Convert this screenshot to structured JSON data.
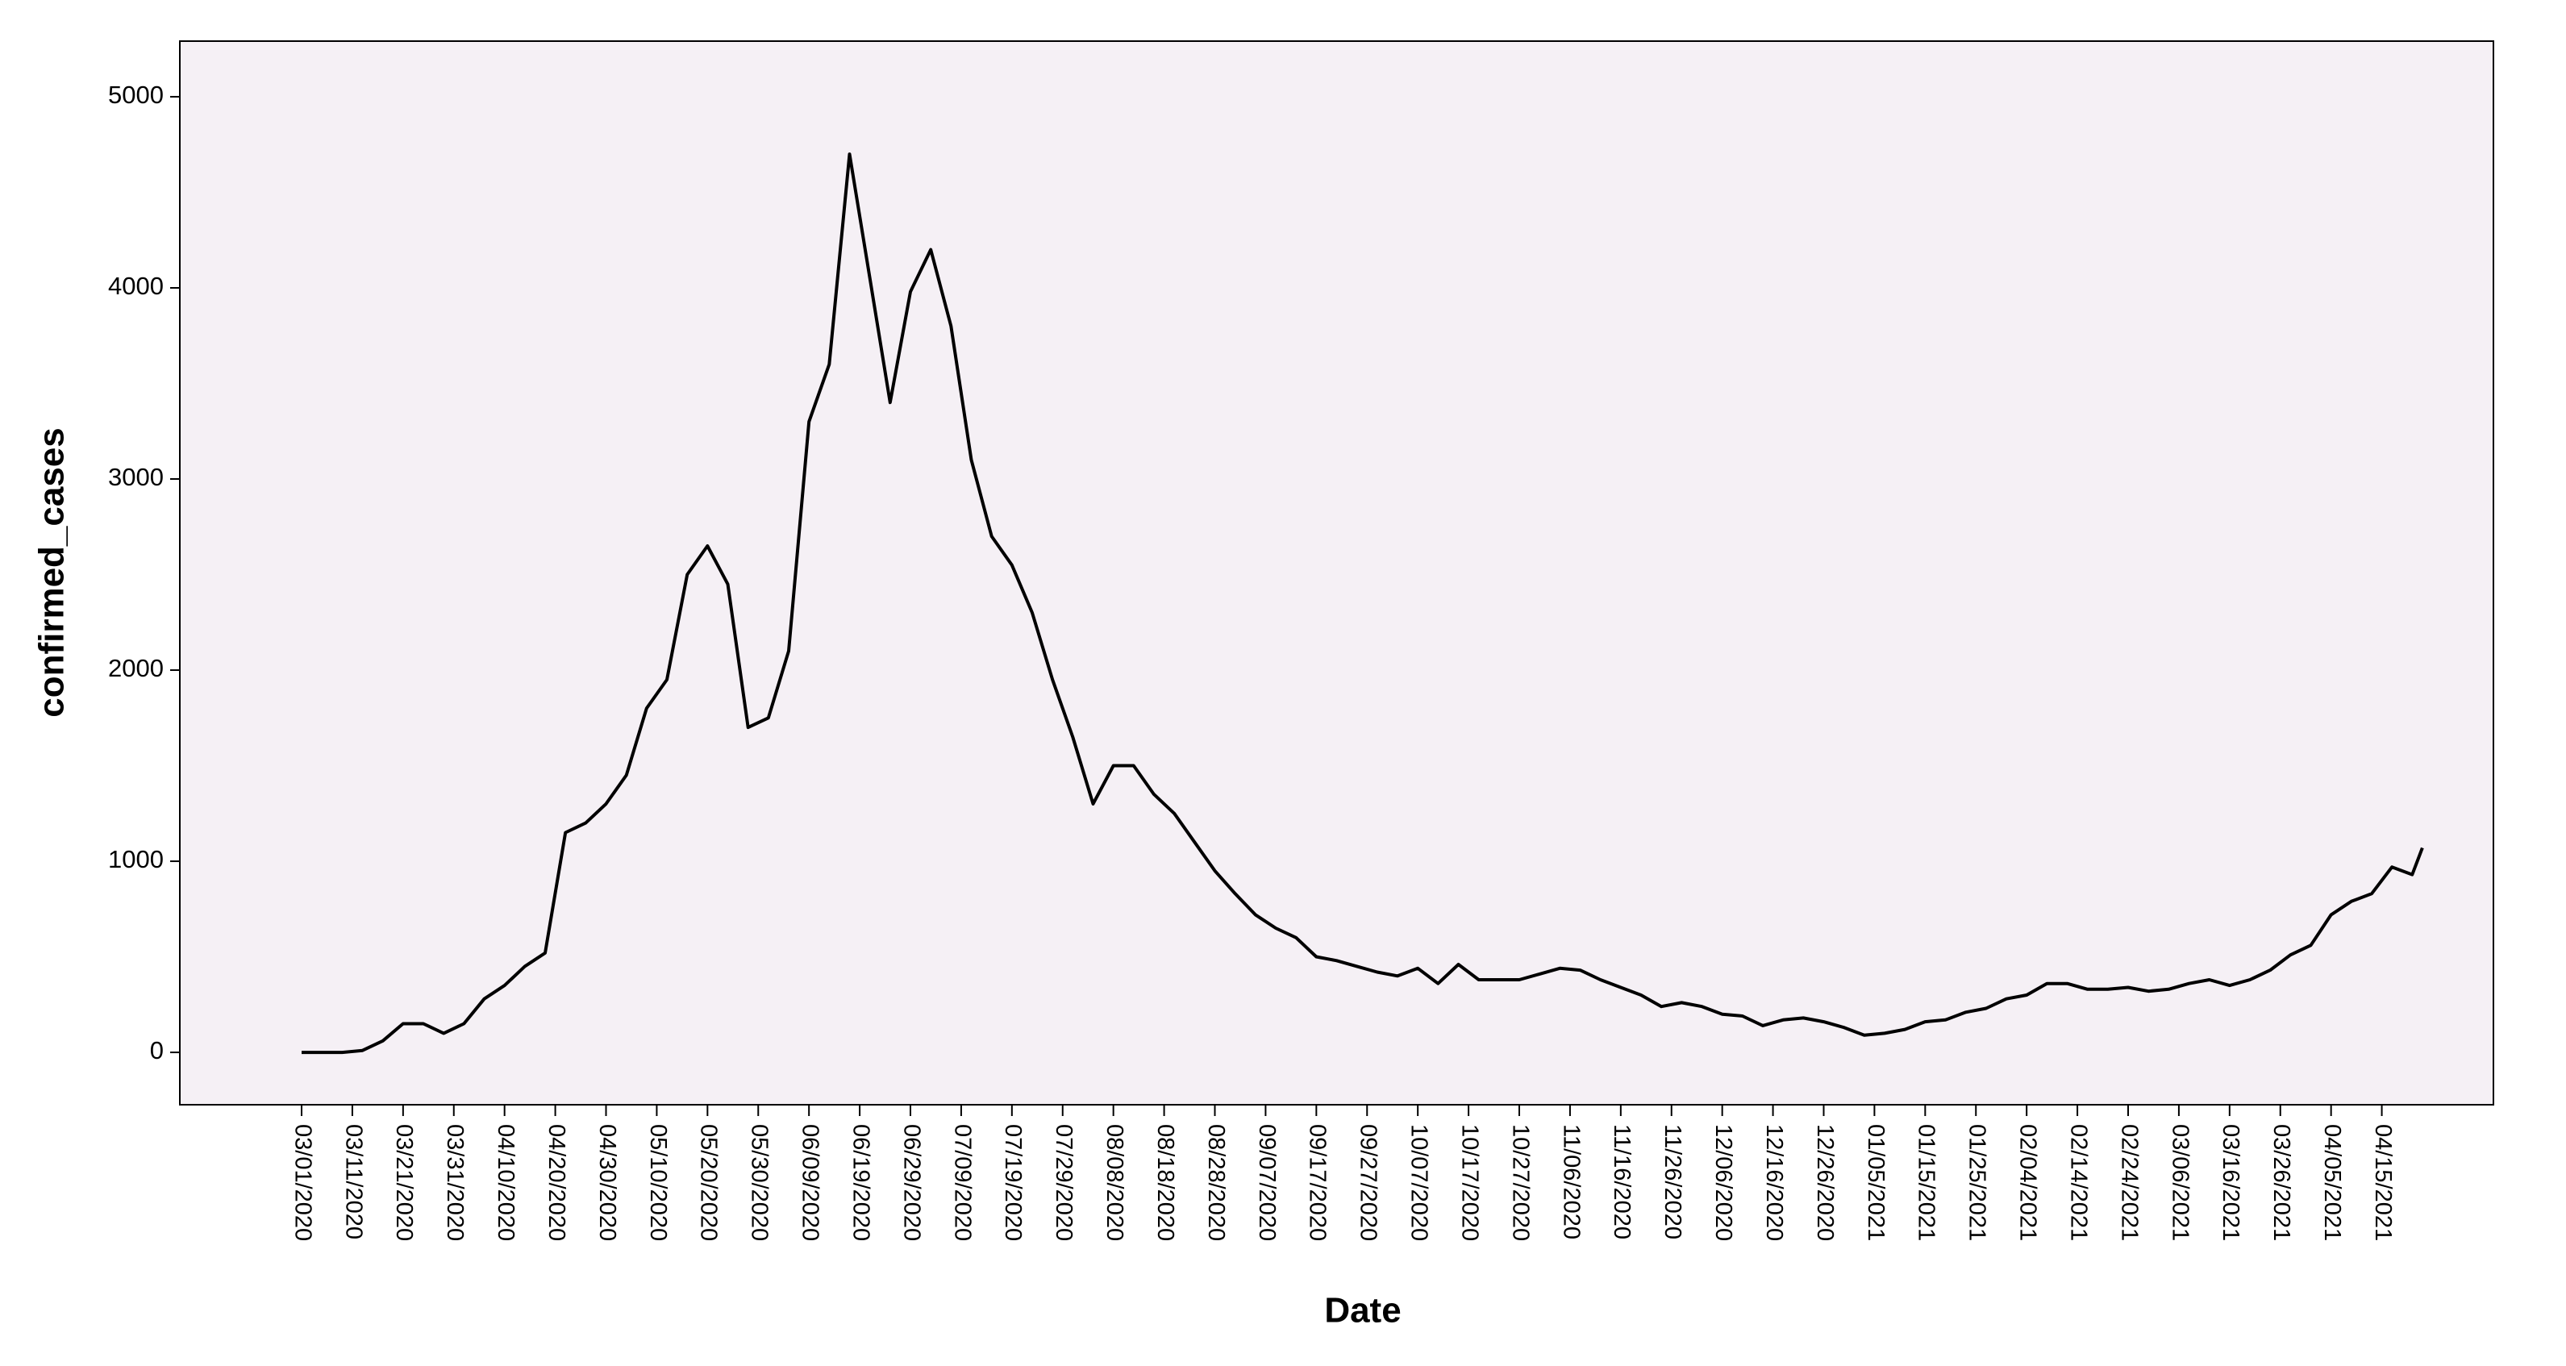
{
  "chart_data": {
    "type": "line",
    "x_label": "Date",
    "y_label": "confirmed_cases",
    "color": "#000000",
    "background": "#f5f0f5",
    "xlim": [
      "02/06/2020",
      "05/07/2021"
    ],
    "xticks": [
      "03/01/2020",
      "03/11/2020",
      "03/21/2020",
      "03/31/2020",
      "04/10/2020",
      "04/20/2020",
      "04/30/2020",
      "05/10/2020",
      "05/20/2020",
      "05/30/2020",
      "06/09/2020",
      "06/19/2020",
      "06/29/2020",
      "07/09/2020",
      "07/19/2020",
      "07/29/2020",
      "08/08/2020",
      "08/18/2020",
      "08/28/2020",
      "09/07/2020",
      "09/17/2020",
      "09/27/2020",
      "10/07/2020",
      "10/17/2020",
      "10/27/2020",
      "11/06/2020",
      "11/16/2020",
      "11/26/2020",
      "12/06/2020",
      "12/16/2020",
      "12/26/2020",
      "01/05/2021",
      "01/15/2021",
      "01/25/2021",
      "02/04/2021",
      "02/14/2021",
      "02/24/2021",
      "03/06/2021",
      "03/16/2021",
      "03/26/2021",
      "04/05/2021",
      "04/15/2021"
    ],
    "ylim": [
      -274,
      5291
    ],
    "yticks": [
      0,
      1000,
      2000,
      3000,
      4000,
      5000
    ],
    "x": [
      "03/01/2020",
      "03/05/2020",
      "03/09/2020",
      "03/13/2020",
      "03/17/2020",
      "03/21/2020",
      "03/25/2020",
      "03/29/2020",
      "04/02/2020",
      "04/06/2020",
      "04/10/2020",
      "04/14/2020",
      "04/18/2020",
      "04/22/2020",
      "04/26/2020",
      "04/30/2020",
      "05/04/2020",
      "05/08/2020",
      "05/12/2020",
      "05/16/2020",
      "05/20/2020",
      "05/24/2020",
      "05/28/2020",
      "06/01/2020",
      "06/05/2020",
      "06/09/2020",
      "06/13/2020",
      "06/17/2020",
      "06/21/2020",
      "06/25/2020",
      "06/29/2020",
      "07/03/2020",
      "07/07/2020",
      "07/11/2020",
      "07/15/2020",
      "07/19/2020",
      "07/23/2020",
      "07/27/2020",
      "07/31/2020",
      "08/04/2020",
      "08/08/2020",
      "08/12/2020",
      "08/16/2020",
      "08/20/2020",
      "08/24/2020",
      "08/28/2020",
      "09/01/2020",
      "09/05/2020",
      "09/09/2020",
      "09/13/2020",
      "09/17/2020",
      "09/21/2020",
      "09/25/2020",
      "09/29/2020",
      "10/03/2020",
      "10/07/2020",
      "10/11/2020",
      "10/15/2020",
      "10/19/2020",
      "10/23/2020",
      "10/27/2020",
      "10/31/2020",
      "11/04/2020",
      "11/08/2020",
      "11/12/2020",
      "11/16/2020",
      "11/20/2020",
      "11/24/2020",
      "11/28/2020",
      "12/02/2020",
      "12/06/2020",
      "12/10/2020",
      "12/14/2020",
      "12/18/2020",
      "12/22/2020",
      "12/26/2020",
      "12/30/2020",
      "01/03/2021",
      "01/07/2021",
      "01/11/2021",
      "01/15/2021",
      "01/19/2021",
      "01/23/2021",
      "01/27/2021",
      "01/31/2021",
      "02/04/2021",
      "02/08/2021",
      "02/12/2021",
      "02/16/2021",
      "02/20/2021",
      "02/24/2021",
      "02/28/2021",
      "03/04/2021",
      "03/08/2021",
      "03/12/2021",
      "03/16/2021",
      "03/20/2021",
      "03/24/2021",
      "03/28/2021",
      "04/01/2021",
      "04/05/2021",
      "04/09/2021",
      "04/13/2021",
      "04/17/2021",
      "04/21/2021",
      "04/23/2021"
    ],
    "values": [
      0,
      0,
      0,
      10,
      60,
      150,
      150,
      100,
      150,
      280,
      350,
      450,
      520,
      1150,
      1200,
      1300,
      1450,
      1800,
      1950,
      2500,
      2650,
      2450,
      1700,
      1750,
      2100,
      3300,
      3600,
      4700,
      4050,
      3400,
      3980,
      4200,
      3800,
      3100,
      2700,
      2550,
      2300,
      1950,
      1650,
      1300,
      1500,
      1500,
      1350,
      1250,
      1100,
      950,
      830,
      720,
      650,
      600,
      500,
      480,
      450,
      420,
      400,
      440,
      360,
      460,
      380,
      380,
      380,
      410,
      440,
      430,
      380,
      340,
      300,
      240,
      260,
      240,
      200,
      190,
      140,
      170,
      180,
      160,
      130,
      90,
      100,
      120,
      160,
      170,
      210,
      230,
      280,
      300,
      360,
      360,
      330,
      330,
      340,
      320,
      330,
      360,
      380,
      350,
      380,
      430,
      510,
      560,
      720,
      790,
      830,
      970,
      930,
      1070
    ]
  }
}
